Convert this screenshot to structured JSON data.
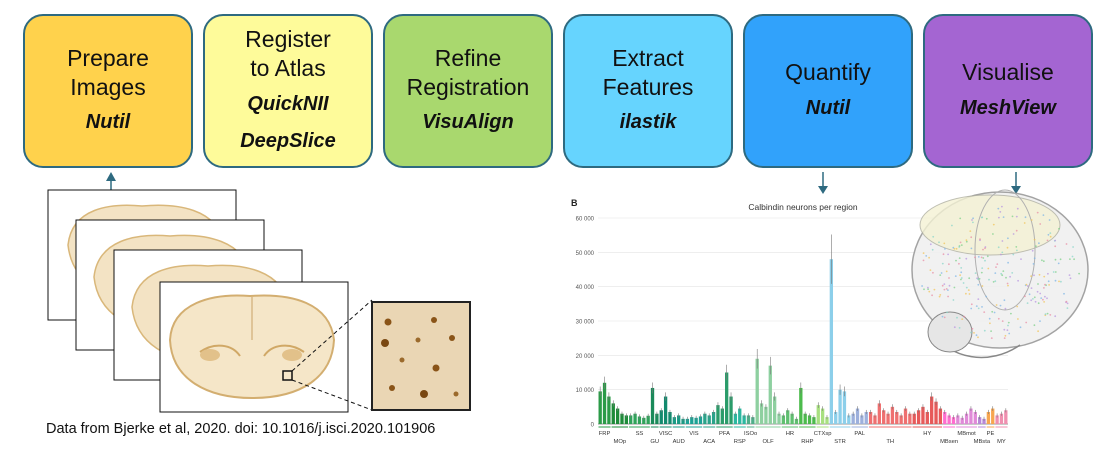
{
  "steps": [
    {
      "title": "Prepare\nImages",
      "tools": [
        "Nutil"
      ],
      "color": "#ffd24c"
    },
    {
      "title": "Register\nto Atlas",
      "tools": [
        "QuickNII",
        "DeepSlice"
      ],
      "color": "#fefb9a"
    },
    {
      "title": "Refine\nRegistration",
      "tools": [
        "VisuAlign"
      ],
      "color": "#a9d86e"
    },
    {
      "title": "Extract\nFeatures",
      "tools": [
        "ilastik"
      ],
      "color": "#66d4fe"
    },
    {
      "title": "Quantify",
      "tools": [
        "Nutil"
      ],
      "color": "#31a2fb"
    },
    {
      "title": "Visualise",
      "tools": [
        "MeshView"
      ],
      "color": "#a465d2"
    }
  ],
  "citation": "Data from Bjerke et al, 2020. doi: 10.1016/j.isci.2020.101906",
  "chart_data": {
    "type": "bar",
    "panel_label": "B",
    "title": "Calbindin neurons per region",
    "ylim": [
      0,
      60000
    ],
    "yticks": [
      "0",
      "10 000",
      "20 000",
      "30 000",
      "40 000",
      "50 000",
      "60 000"
    ],
    "groups": [
      {
        "label": "FRP",
        "color": "#2b9b48",
        "values": [
          9500,
          12000,
          8000
        ]
      },
      {
        "label": "MOp",
        "color": "#1e8c3a",
        "values": [
          6000,
          4500,
          3000,
          2500
        ]
      },
      {
        "label": "SS",
        "color": "#2fa35a",
        "values": [
          2500,
          3000,
          2200,
          1800,
          2400
        ]
      },
      {
        "label": "GU",
        "color": "#1a8a5a",
        "values": [
          10500,
          3000
        ]
      },
      {
        "label": "VISC",
        "color": "#138a6e",
        "values": [
          4000,
          8000,
          3500
        ]
      },
      {
        "label": "AUD",
        "color": "#1a9a84",
        "values": [
          2000,
          2500,
          1500
        ]
      },
      {
        "label": "VIS",
        "color": "#1ba295",
        "values": [
          1500,
          2000,
          1800,
          2200
        ]
      },
      {
        "label": "ACA",
        "color": "#2aa38a",
        "values": [
          3000,
          2500,
          3500
        ]
      },
      {
        "label": "PFA",
        "color": "#2a9c6a",
        "values": [
          5500,
          4500,
          15000,
          8000
        ]
      },
      {
        "label": "RSP",
        "color": "#2bb8a0",
        "values": [
          3000,
          4500,
          2500
        ]
      },
      {
        "label": "ISOo",
        "color": "#4fae8a",
        "values": [
          2500,
          2000
        ]
      },
      {
        "label": "OLF",
        "color": "#8ed0a0",
        "values": [
          19000,
          6000,
          5000,
          17000,
          8000,
          3000
        ]
      },
      {
        "label": "HR",
        "color": "#5fc070",
        "values": [
          2500,
          4000,
          3000,
          1500
        ]
      },
      {
        "label": "RHP",
        "color": "#4cbb4c",
        "values": [
          10500,
          3000,
          2500,
          2000
        ]
      },
      {
        "label": "CTXsp",
        "color": "#a8e080",
        "values": [
          5500,
          4500,
          2000
        ]
      },
      {
        "label": "STR",
        "color": "#8ccfea",
        "values": [
          48000,
          3500,
          10000,
          9500,
          2500
        ]
      },
      {
        "label": "PAL",
        "color": "#9db0dc",
        "values": [
          3000,
          4500,
          2500,
          3500
        ]
      },
      {
        "label": "TH",
        "color": "#ef7070",
        "values": [
          3500,
          2500,
          6000,
          4000,
          3000,
          5000,
          3500,
          2500,
          4500,
          3000
        ]
      },
      {
        "label": "HY",
        "color": "#e75a5a",
        "values": [
          3000,
          4000,
          5000,
          3500,
          8000,
          6500,
          4500
        ]
      },
      {
        "label": "MBsen",
        "color": "#ff6ecf",
        "values": [
          3500,
          2500,
          2000
        ]
      },
      {
        "label": "MBmot",
        "color": "#e08ad8",
        "values": [
          2500,
          1800,
          3000,
          4500,
          3500
        ]
      },
      {
        "label": "MBsta",
        "color": "#b889d8",
        "values": [
          2000,
          1500
        ]
      },
      {
        "label": "PE",
        "color": "#f7a650",
        "values": [
          3500,
          4500
        ]
      },
      {
        "label": "MY",
        "color": "#f08fb0",
        "values": [
          2500,
          3000,
          4000
        ]
      }
    ]
  }
}
